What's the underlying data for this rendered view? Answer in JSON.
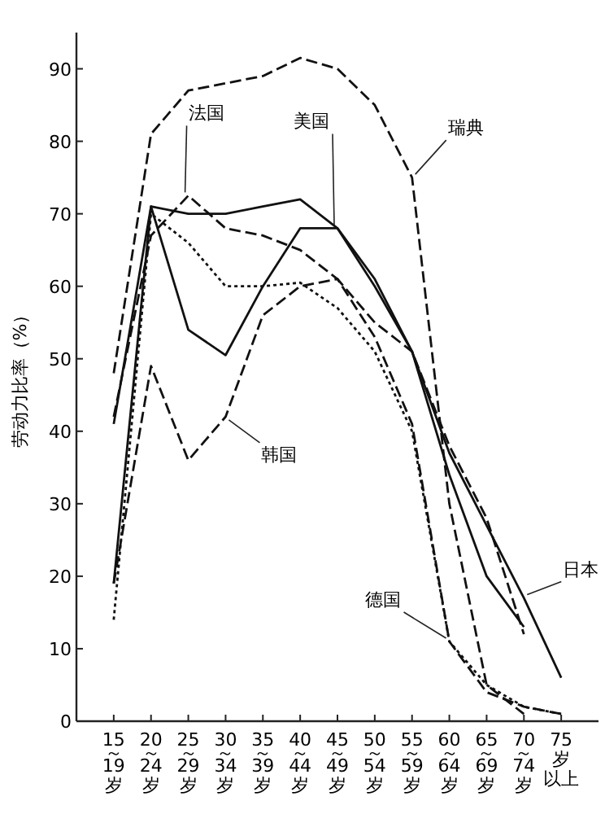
{
  "chart_data": {
    "type": "line",
    "ylabel": "劳动力比率（%）",
    "categories": [
      "15～19岁",
      "20～24岁",
      "25～29岁",
      "30～34岁",
      "35～39岁",
      "40～44岁",
      "45～49岁",
      "50～54岁",
      "55～59岁",
      "60～64岁",
      "65～69岁",
      "70～74岁",
      "75岁以上"
    ],
    "ylim": [
      0,
      95
    ],
    "yticks": [
      0,
      10,
      20,
      30,
      40,
      50,
      60,
      70,
      80,
      90
    ],
    "grid": false,
    "marker": "none",
    "series": [
      {
        "name": "瑞典",
        "color": "#111111",
        "line_style": "dashed",
        "values": [
          48,
          81,
          87,
          88,
          89,
          91.5,
          90,
          85,
          75,
          30,
          5,
          1,
          null
        ]
      },
      {
        "name": "法国",
        "color": "#111111",
        "line_style": "dashed",
        "values": [
          42,
          67,
          72.5,
          68,
          67,
          65,
          61,
          53,
          41,
          11,
          4,
          2,
          1
        ]
      },
      {
        "name": "美国",
        "color": "#111111",
        "line_style": "solid",
        "values": [
          41,
          71,
          70,
          70,
          71,
          72,
          68,
          61,
          51,
          34,
          20,
          13,
          null
        ]
      },
      {
        "name": "韩国",
        "color": "#111111",
        "line_style": "dashed",
        "values": [
          19,
          49,
          36,
          42,
          56,
          60,
          61,
          55,
          51,
          38,
          28,
          12,
          null
        ]
      },
      {
        "name": "日本",
        "color": "#111111",
        "line_style": "solid",
        "values": [
          19,
          71,
          54,
          50.5,
          60,
          68,
          68,
          60,
          51,
          37,
          27,
          17,
          6
        ]
      },
      {
        "name": "德国",
        "color": "#111111",
        "line_style": "dotted",
        "values": [
          14,
          70,
          66,
          60,
          60,
          60.5,
          57,
          51,
          40,
          11,
          5,
          2,
          1
        ]
      }
    ]
  }
}
